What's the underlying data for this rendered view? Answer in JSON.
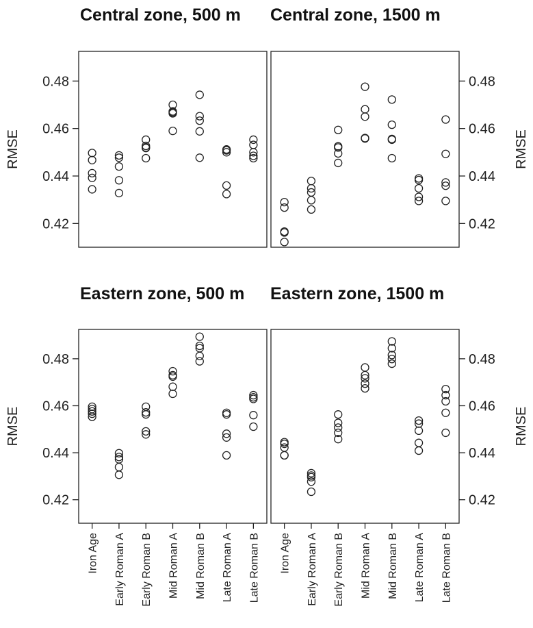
{
  "chart_data": {
    "type": "scatter",
    "ylabel": "RMSE",
    "categories": [
      "Iron Age",
      "Early Roman A",
      "Early Roman B",
      "Mid  Roman A",
      "Mid  Roman B",
      "Late Roman A",
      "Late Roman B"
    ],
    "ytick_labels": [
      "0.42",
      "0.44",
      "0.46",
      "0.48"
    ],
    "panels": [
      {
        "title": "Central zone, 500 m",
        "ylim": [
          0.41,
          0.4925
        ],
        "points": [
          [
            0.4497,
            0.4467,
            0.4412,
            0.4392,
            0.4344
          ],
          [
            0.4487,
            0.4477,
            0.444,
            0.4382,
            0.4328
          ],
          [
            0.4553,
            0.4527,
            0.452,
            0.4518,
            0.4475
          ],
          [
            0.47,
            0.4672,
            0.4668,
            0.4664,
            0.459
          ],
          [
            0.4742,
            0.4652,
            0.4633,
            0.4588,
            0.4477
          ],
          [
            0.4512,
            0.4508,
            0.45,
            0.436,
            0.4324
          ],
          [
            0.4553,
            0.4531,
            0.45,
            0.4485,
            0.4475
          ]
        ]
      },
      {
        "title": "Central zone, 1500 m",
        "ylim": [
          0.41,
          0.4925
        ],
        "points": [
          [
            0.429,
            0.4267,
            0.4166,
            0.4162,
            0.4122
          ],
          [
            0.4379,
            0.4348,
            0.4331,
            0.4298,
            0.4259
          ],
          [
            0.4594,
            0.4525,
            0.452,
            0.4495,
            0.4455
          ],
          [
            0.4776,
            0.4681,
            0.465,
            0.456,
            0.4558
          ],
          [
            0.4722,
            0.4616,
            0.4556,
            0.4553,
            0.4475
          ],
          [
            0.439,
            0.4383,
            0.4348,
            0.4312,
            0.4295
          ],
          [
            0.4638,
            0.4493,
            0.4373,
            0.4359,
            0.4295
          ]
        ]
      },
      {
        "title": "Eastern zone, 500 m",
        "ylim": [
          0.41,
          0.4925
        ],
        "points": [
          [
            0.4596,
            0.4586,
            0.4576,
            0.4566,
            0.4553
          ],
          [
            0.4398,
            0.4382,
            0.4372,
            0.4339,
            0.4306
          ],
          [
            0.4596,
            0.4572,
            0.4563,
            0.4491,
            0.4478
          ],
          [
            0.4747,
            0.473,
            0.4724,
            0.4681,
            0.4651
          ],
          [
            0.4894,
            0.4855,
            0.4845,
            0.4812,
            0.4789
          ],
          [
            0.457,
            0.4563,
            0.4481,
            0.4465,
            0.4389
          ],
          [
            0.4645,
            0.4636,
            0.4629,
            0.456,
            0.4511
          ]
        ]
      },
      {
        "title": "Eastern zone, 1500 m",
        "ylim": [
          0.41,
          0.4925
        ],
        "points": [
          [
            0.4445,
            0.4438,
            0.4422,
            0.4389,
            0.4389
          ],
          [
            0.4313,
            0.4303,
            0.4296,
            0.4277,
            0.4234
          ],
          [
            0.4563,
            0.4527,
            0.4507,
            0.4485,
            0.4458
          ],
          [
            0.4763,
            0.473,
            0.4717,
            0.4694,
            0.4674
          ],
          [
            0.4874,
            0.4845,
            0.4816,
            0.4799,
            0.4779
          ],
          [
            0.4537,
            0.4524,
            0.4494,
            0.4442,
            0.4409
          ],
          [
            0.4671,
            0.4645,
            0.4619,
            0.457,
            0.4485
          ]
        ]
      }
    ]
  }
}
